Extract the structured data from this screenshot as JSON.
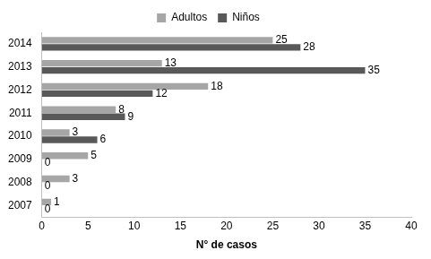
{
  "chart_data": {
    "type": "bar",
    "orientation": "horizontal",
    "x_label": "N° de casos",
    "categories": [
      "2014",
      "2013",
      "2012",
      "2011",
      "2010",
      "2009",
      "2008",
      "2007"
    ],
    "series": [
      {
        "name": "Adultos",
        "color": "#a6a6a6",
        "values": [
          25,
          13,
          18,
          8,
          3,
          5,
          3,
          1
        ]
      },
      {
        "name": "Niños",
        "color": "#595959",
        "values": [
          28,
          35,
          12,
          9,
          6,
          0,
          0,
          0
        ]
      }
    ],
    "xlim": [
      0,
      40
    ],
    "xticks": [
      0,
      5,
      10,
      15,
      20,
      25,
      30,
      35,
      40
    ],
    "grid": false,
    "legend": "top",
    "data_labels": true
  }
}
